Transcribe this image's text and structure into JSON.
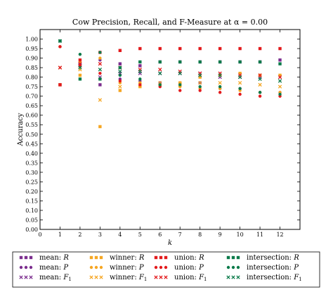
{
  "chart_data": {
    "type": "scatter",
    "title": "Cow Precision, Recall, and F-Measure at α = 0.00",
    "xlabel": "k",
    "ylabel": "Accuracy",
    "xlim": [
      0,
      13
    ],
    "ylim": [
      0,
      1.05
    ],
    "xticks": [
      0,
      1,
      2,
      3,
      4,
      5,
      6,
      7,
      8,
      9,
      10,
      11,
      12
    ],
    "yticks": [
      0.0,
      0.05,
      0.1,
      0.15,
      0.2,
      0.25,
      0.3,
      0.35,
      0.4,
      0.45,
      0.5,
      0.55,
      0.6,
      0.65,
      0.7,
      0.75,
      0.8,
      0.85,
      0.9,
      0.95,
      1.0
    ],
    "legend_position": "bottom",
    "groups": [
      {
        "key": "mean",
        "label": "mean",
        "color": "#7b2d8e"
      },
      {
        "key": "winner",
        "label": "winner",
        "color": "#f5a623"
      },
      {
        "key": "union",
        "label": "union",
        "color": "#e31a1c"
      },
      {
        "key": "intersection",
        "label": "intersection",
        "color": "#0b7a4a"
      }
    ],
    "measures": [
      {
        "key": "R",
        "label": "R",
        "marker": "square"
      },
      {
        "key": "P",
        "label": "P",
        "marker": "circle"
      },
      {
        "key": "F1",
        "label": "F1",
        "marker": "x"
      }
    ],
    "series": [
      {
        "group": "mean",
        "measure": "R",
        "x": [
          1,
          2,
          3,
          4,
          5,
          6,
          7,
          8,
          9,
          10,
          11,
          12
        ],
        "y": [
          0.76,
          0.87,
          0.76,
          0.87,
          0.86,
          0.88,
          0.88,
          0.88,
          0.88,
          0.88,
          0.88,
          0.89
        ]
      },
      {
        "group": "mean",
        "measure": "P",
        "x": [
          1,
          2,
          3,
          4,
          5,
          6,
          7,
          8,
          9,
          10,
          11,
          12
        ],
        "y": [
          0.96,
          0.87,
          0.89,
          0.79,
          0.78,
          0.77,
          0.77,
          0.77,
          0.74,
          0.74,
          0.72,
          0.72
        ]
      },
      {
        "group": "mean",
        "measure": "F1",
        "x": [
          1,
          2,
          3,
          4,
          5,
          6,
          7,
          8,
          9,
          10,
          11,
          12
        ],
        "y": [
          0.85,
          0.86,
          0.8,
          0.82,
          0.82,
          0.82,
          0.82,
          0.82,
          0.8,
          0.8,
          0.8,
          0.8
        ]
      },
      {
        "group": "winner",
        "measure": "R",
        "x": [
          1,
          2,
          3,
          4,
          5,
          6,
          7,
          8,
          9,
          10,
          11,
          12
        ],
        "y": [
          0.76,
          0.81,
          0.54,
          0.73,
          0.75,
          0.76,
          0.77,
          0.8,
          0.81,
          0.82,
          0.81,
          0.81
        ]
      },
      {
        "group": "winner",
        "measure": "P",
        "x": [
          1,
          2,
          3,
          4,
          5,
          6,
          7,
          8,
          9,
          10,
          11,
          12
        ],
        "y": [
          0.96,
          0.88,
          0.9,
          0.77,
          0.77,
          0.76,
          0.75,
          0.74,
          0.74,
          0.73,
          0.72,
          0.72
        ]
      },
      {
        "group": "winner",
        "measure": "F1",
        "x": [
          1,
          2,
          3,
          4,
          5,
          6,
          7,
          8,
          9,
          10,
          11,
          12
        ],
        "y": [
          0.85,
          0.84,
          0.68,
          0.75,
          0.76,
          0.77,
          0.76,
          0.77,
          0.77,
          0.77,
          0.76,
          0.75
        ]
      },
      {
        "group": "union",
        "measure": "R",
        "x": [
          1,
          2,
          3,
          4,
          5,
          6,
          7,
          8,
          9,
          10,
          11,
          12
        ],
        "y": [
          0.76,
          0.89,
          0.93,
          0.94,
          0.95,
          0.95,
          0.95,
          0.95,
          0.95,
          0.95,
          0.95,
          0.95
        ]
      },
      {
        "group": "union",
        "measure": "P",
        "x": [
          1,
          2,
          3,
          4,
          5,
          6,
          7,
          8,
          9,
          10,
          11,
          12
        ],
        "y": [
          0.96,
          0.86,
          0.82,
          0.78,
          0.76,
          0.75,
          0.73,
          0.73,
          0.72,
          0.71,
          0.7,
          0.7
        ]
      },
      {
        "group": "union",
        "measure": "F1",
        "x": [
          1,
          2,
          3,
          4,
          5,
          6,
          7,
          8,
          9,
          10,
          11,
          12
        ],
        "y": [
          0.85,
          0.87,
          0.87,
          0.85,
          0.84,
          0.84,
          0.83,
          0.82,
          0.82,
          0.81,
          0.81,
          0.8
        ]
      },
      {
        "group": "intersection",
        "measure": "R",
        "x": [
          1,
          2,
          3,
          4,
          5,
          6,
          7,
          8,
          9,
          10,
          11,
          12
        ],
        "y": [
          0.99,
          0.79,
          0.79,
          0.85,
          0.88,
          0.88,
          0.88,
          0.88,
          0.88,
          0.88,
          0.88,
          0.87
        ]
      },
      {
        "group": "intersection",
        "measure": "P",
        "x": [
          1,
          2,
          3,
          4,
          5,
          6,
          7,
          8,
          9,
          10,
          11,
          12
        ],
        "y": [
          0.99,
          0.92,
          0.93,
          0.81,
          0.79,
          0.76,
          0.76,
          0.75,
          0.75,
          0.74,
          0.72,
          0.71
        ]
      },
      {
        "group": "intersection",
        "measure": "F1",
        "x": [
          1,
          2,
          3,
          4,
          5,
          6,
          7,
          8,
          9,
          10,
          11,
          12
        ],
        "y": [
          0.99,
          0.85,
          0.84,
          0.83,
          0.83,
          0.82,
          0.82,
          0.81,
          0.81,
          0.8,
          0.79,
          0.78
        ]
      }
    ]
  }
}
